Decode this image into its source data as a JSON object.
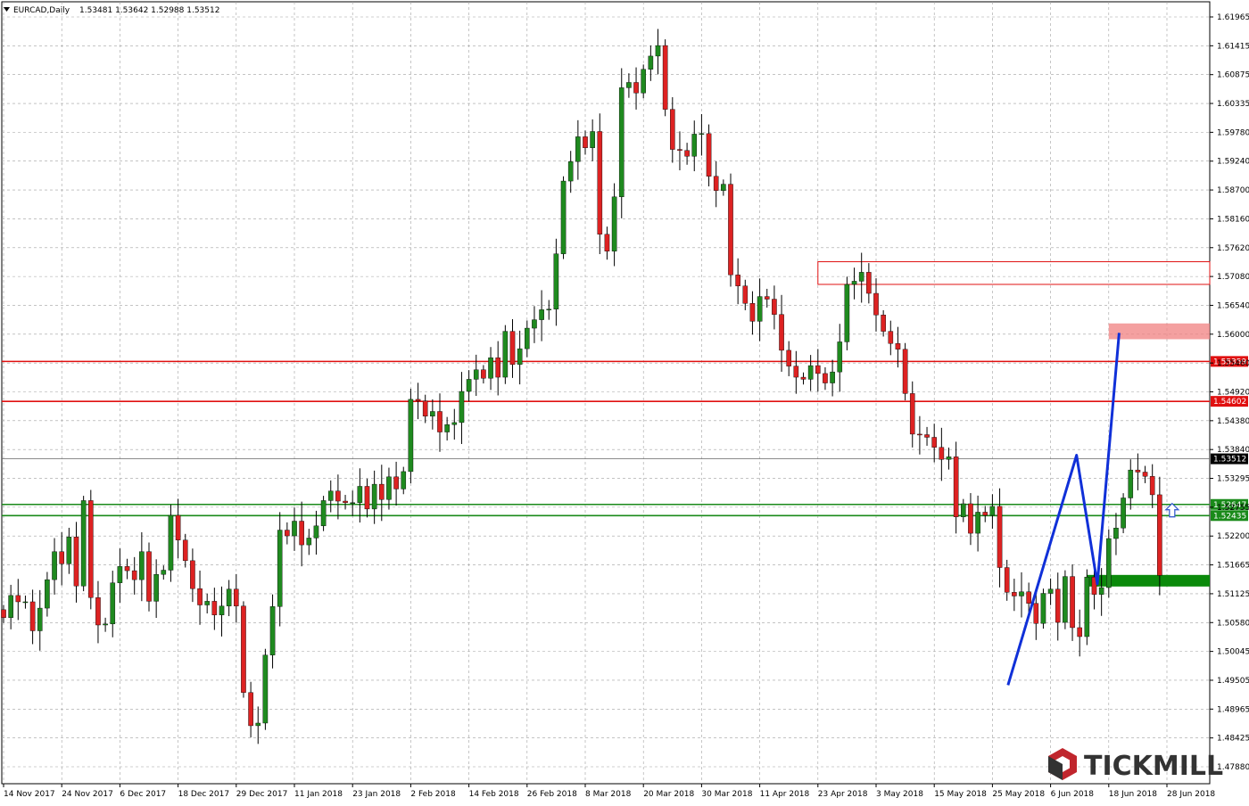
{
  "header": {
    "menu_icon": "triangle-down-icon",
    "symbol": "EURCAD,Daily",
    "ohlc": "1.53481 1.53642 1.52988 1.53512"
  },
  "logo": {
    "text": "TICKMILL",
    "icon": "tickmill-hexagon-icon"
  },
  "colors": {
    "bull": "#1f8a1f",
    "bear": "#dd2222",
    "grid": "#a0a0a0",
    "resistance": "#e01010",
    "support": "#1a8a1a",
    "pattern": "#1030d8",
    "arrow": "#3a5fd0"
  },
  "chart_data": {
    "type": "candlestick",
    "title": "EURCAD,Daily",
    "ylim": [
      1.4735,
      1.6218
    ],
    "price_ticks": [
      "1.61965",
      "1.61415",
      "1.60875",
      "1.60335",
      "1.59780",
      "1.59240",
      "1.58700",
      "1.58160",
      "1.57620",
      "1.57080",
      "1.56540",
      "1.56000",
      "1.55460",
      "1.54920",
      "1.54380",
      "1.53840",
      "1.53295",
      "1.52755",
      "1.52200",
      "1.51665",
      "1.51125",
      "1.50580",
      "1.50045",
      "1.49505",
      "1.48965",
      "1.48425",
      "1.47880"
    ],
    "date_ticks": [
      "14 Nov 2017",
      "24 Nov 2017",
      "6 Dec 2017",
      "18 Dec 2017",
      "29 Dec 2017",
      "11 Jan 2018",
      "23 Jan 2018",
      "2 Feb 2018",
      "14 Feb 2018",
      "26 Feb 2018",
      "8 Mar 2018",
      "20 Mar 2018",
      "30 Mar 2018",
      "11 Apr 2018",
      "23 Apr 2018",
      "3 May 2018",
      "15 May 2018",
      "25 May 2018",
      "6 Jun 2018",
      "18 Jun 2018",
      "28 Jun 2018"
    ],
    "current_price": "1.53512",
    "grid": true,
    "levels": [
      {
        "label": "1.55359",
        "value": 1.55359,
        "kind": "resistance"
      },
      {
        "label": "1.54602",
        "value": 1.54602,
        "kind": "resistance"
      },
      {
        "label": "1.52647",
        "value": 1.52647,
        "kind": "support"
      },
      {
        "label": "1.52435",
        "value": 1.52435,
        "kind": "support"
      }
    ],
    "zones": [
      {
        "kind": "outline",
        "date_from": "23 Apr 2018",
        "date_to": "right-edge",
        "y_from": 1.5682,
        "y_to": 1.5725
      },
      {
        "kind": "supply",
        "date_from": "18 Jun 2018",
        "date_to": "right-edge",
        "y_from": 1.5578,
        "y_to": 1.5608
      },
      {
        "kind": "demand",
        "date_from": "13 Jun 2018",
        "date_to": "right-edge",
        "y_from": 1.5109,
        "y_to": 1.5131
      }
    ],
    "pattern_polyline": [
      {
        "date": "28 May 2018",
        "price": 1.4922
      },
      {
        "date": "11 Jun 2018",
        "price": 1.5358
      },
      {
        "date": "15 Jun 2018",
        "price": 1.5114
      },
      {
        "date": "20 Jun 2018",
        "price": 1.559
      }
    ],
    "arrow_marker": {
      "date": "29 Jun 2018",
      "price": 1.5253,
      "direction": "up"
    },
    "anchors": [
      {
        "date": "14 Nov 2017",
        "index": 0
      },
      {
        "date": "24 Nov 2017",
        "index": 8
      },
      {
        "date": "6 Dec 2017",
        "index": 16
      },
      {
        "date": "18 Dec 2017",
        "index": 24
      },
      {
        "date": "29 Dec 2017",
        "index": 32
      },
      {
        "date": "11 Jan 2018",
        "index": 40
      },
      {
        "date": "23 Jan 2018",
        "index": 48
      },
      {
        "date": "2 Feb 2018",
        "index": 56
      },
      {
        "date": "14 Feb 2018",
        "index": 64
      },
      {
        "date": "26 Feb 2018",
        "index": 72
      },
      {
        "date": "8 Mar 2018",
        "index": 80
      },
      {
        "date": "20 Mar 2018",
        "index": 88
      },
      {
        "date": "30 Mar 2018",
        "index": 96
      },
      {
        "date": "11 Apr 2018",
        "index": 104
      },
      {
        "date": "23 Apr 2018",
        "index": 112
      },
      {
        "date": "3 May 2018",
        "index": 120
      },
      {
        "date": "15 May 2018",
        "index": 128
      },
      {
        "date": "25 May 2018",
        "index": 136
      },
      {
        "date": "6 Jun 2018",
        "index": 144
      },
      {
        "date": "18 Jun 2018",
        "index": 152
      },
      {
        "date": "28 Jun 2018",
        "index": 160
      }
    ],
    "closes": [
      1.505,
      1.5092,
      1.508,
      1.508,
      1.5025,
      1.5068,
      1.5122,
      1.5175,
      1.5152,
      1.5203,
      1.511,
      1.5272,
      1.5088,
      1.5036,
      1.5038,
      1.5116,
      1.5147,
      1.5139,
      1.5122,
      1.5175,
      1.5081,
      1.5132,
      1.514,
      1.5244,
      1.5197,
      1.5158,
      1.5105,
      1.5074,
      1.5081,
      1.5055,
      1.5072,
      1.5104,
      1.5072,
      1.4908,
      1.4845,
      1.485,
      1.4979,
      1.5071,
      1.5216,
      1.5205,
      1.5233,
      1.5188,
      1.5201,
      1.5224,
      1.5272,
      1.529,
      1.5271,
      1.5268,
      1.5268,
      1.5299,
      1.5256,
      1.5303,
      1.5274,
      1.5317,
      1.5294,
      1.5327,
      1.5464,
      1.5461,
      1.5432,
      1.5441,
      1.5402,
      1.5416,
      1.542,
      1.5479,
      1.5502,
      1.552,
      1.5504,
      1.5543,
      1.5506,
      1.5593,
      1.553,
      1.556,
      1.5599,
      1.5615,
      1.5634,
      1.5635,
      1.574,
      1.5878,
      1.5915,
      1.5962,
      1.5941,
      1.5972,
      1.5777,
      1.5745,
      1.5848,
      1.6055,
      1.6065,
      1.6045,
      1.609,
      1.6115,
      1.6135,
      1.6014,
      1.5938,
      1.5936,
      1.5925,
      1.5967,
      1.5968,
      1.5887,
      1.586,
      1.5872,
      1.57,
      1.5679,
      1.5646,
      1.5612,
      1.5659,
      1.5654,
      1.5625,
      1.5557,
      1.5527,
      1.5506,
      1.5502,
      1.5528,
      1.5513,
      1.5495,
      1.5516,
      1.5573,
      1.5682,
      1.5688,
      1.5705,
      1.5665,
      1.5624,
      1.5593,
      1.557,
      1.5559,
      1.5475,
      1.5398,
      1.5397,
      1.5392,
      1.5373,
      1.535,
      1.5355,
      1.5241,
      1.5266,
      1.521,
      1.525,
      1.5244,
      1.5261,
      1.5145,
      1.5098,
      1.5091,
      1.5099,
      1.5077,
      1.5039,
      1.5096,
      1.5104,
      1.5041,
      1.5128,
      1.5031,
      1.5014,
      1.5127,
      1.5094,
      1.5107,
      1.52,
      1.522,
      1.5277,
      1.533,
      1.5326,
      1.5318,
      1.5283,
      1.513
    ]
  }
}
